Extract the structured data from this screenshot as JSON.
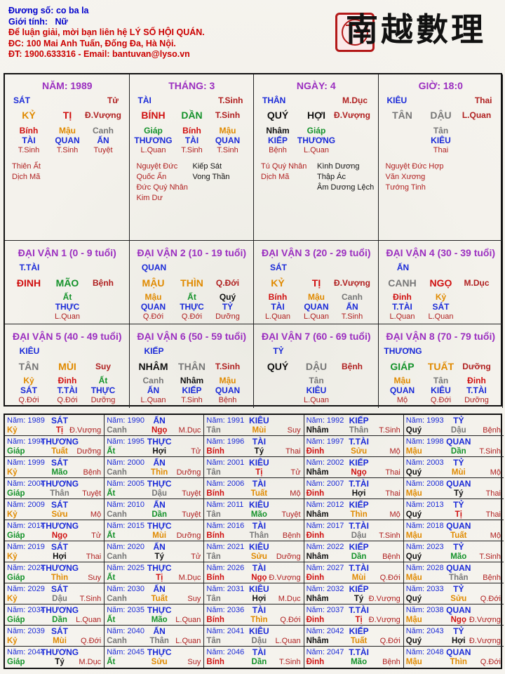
{
  "header": {
    "lines": [
      {
        "label": "Đương số:",
        "value": "co ba la"
      },
      {
        "label": "Giới tính:",
        "value": "Nữ"
      }
    ],
    "contact": [
      "Để luận giải, mời bạn liên hệ LÝ SỐ HỘI QUÁN.",
      "ĐC: 100 Mai Anh Tuấn, Đống Đa, Hà Nội.",
      "ĐT: 1900.633316 - Email: bantuvan@lyso.vn"
    ],
    "brand": "南越數理"
  },
  "pillars": [
    {
      "title": "NĂM: 1989",
      "thap_than": "SÁT",
      "stem_status": "Tử",
      "can": "KỶ",
      "chi": "TỊ",
      "life": "Đ.Vượng",
      "hidden": [
        {
          "stem": "Bính",
          "god": "TÀI",
          "phase": "T.Sinh"
        },
        {
          "stem": "Mậu",
          "god": "QUAN",
          "phase": "T.Sinh"
        },
        {
          "stem": "Canh",
          "god": "ẤN",
          "phase": "Tuyệt"
        }
      ],
      "stars_left": [
        "Thiên Ất",
        "Dịch Mã"
      ],
      "stars_right": []
    },
    {
      "title": "THÁNG: 3",
      "thap_than": "TÀI",
      "stem_status": "T.Sinh",
      "can": "BÍNH",
      "chi": "DẦN",
      "life": "T.Sinh",
      "hidden": [
        {
          "stem": "Giáp",
          "god": "THƯƠNG",
          "phase": "L.Quan"
        },
        {
          "stem": "Bính",
          "god": "TÀI",
          "phase": "T.Sinh"
        },
        {
          "stem": "Mậu",
          "god": "QUAN",
          "phase": "T.Sinh"
        }
      ],
      "stars_left": [
        "Nguyệt Đức",
        "Quốc Ấn",
        "Đức Quý Nhân",
        "Kim Dư"
      ],
      "stars_right": [
        "Kiếp Sát",
        "Vong Thần"
      ]
    },
    {
      "title": "NGÀY: 4",
      "thap_than": "THÂN",
      "stem_status": "M.Dục",
      "can": "QUÝ",
      "chi": "HỢI",
      "life": "Đ.Vượng",
      "hidden": [
        {
          "stem": "Nhâm",
          "god": "KIẾP",
          "phase": "Bệnh"
        },
        {
          "stem": "Giáp",
          "god": "THƯƠNG",
          "phase": "L.Quan"
        }
      ],
      "stars_left": [
        "Tú Quý Nhân",
        "Dịch Mã"
      ],
      "stars_right": [
        "Kình Dương",
        "Thập Ác",
        "Âm Dương Lệch"
      ]
    },
    {
      "title": "GIỜ: 18:0",
      "thap_than": "KIÊU",
      "stem_status": "Thai",
      "can": "TÂN",
      "chi": "DẬU",
      "life": "L.Quan",
      "hidden": [
        {
          "stem": "Tân",
          "god": "KIÊU",
          "phase": "Thai"
        }
      ],
      "stars_left": [
        "Nguyệt Đức Hợp",
        "Văn Xương",
        "Tướng Tinh"
      ],
      "stars_right": []
    }
  ],
  "dai_van": [
    {
      "title": "ĐẠI VẬN 1 (0 - 9 tuổi)",
      "god": "T.TÀI",
      "can": "ĐINH",
      "chi": "MÃO",
      "life": "Bệnh",
      "hidden": [
        {
          "stem": "Ất",
          "god": "THỰC",
          "phase": "L.Quan"
        }
      ]
    },
    {
      "title": "ĐẠI VẬN 2 (10 - 19 tuổi)",
      "god": "QUAN",
      "can": "MẬU",
      "chi": "THÌN",
      "life": "Q.Đới",
      "hidden": [
        {
          "stem": "Mậu",
          "god": "QUAN",
          "phase": "Q.Đới"
        },
        {
          "stem": "Ất",
          "god": "THỰC",
          "phase": "Q.Đới"
        },
        {
          "stem": "Quý",
          "god": "TỶ",
          "phase": "Dưỡng"
        }
      ]
    },
    {
      "title": "ĐẠI VẬN 3 (20 - 29 tuổi)",
      "god": "SÁT",
      "can": "KỶ",
      "chi": "TỊ",
      "life": "Đ.Vượng",
      "hidden": [
        {
          "stem": "Bính",
          "god": "TÀI",
          "phase": "L.Quan"
        },
        {
          "stem": "Mậu",
          "god": "QUAN",
          "phase": "L.Quan"
        },
        {
          "stem": "Canh",
          "god": "ẤN",
          "phase": "T.Sinh"
        }
      ]
    },
    {
      "title": "ĐẠI VẬN 4 (30 - 39 tuổi)",
      "god": "ẤN",
      "can": "CANH",
      "chi": "NGỌ",
      "life": "M.Dục",
      "hidden": [
        {
          "stem": "Đinh",
          "god": "T.TÀI",
          "phase": "L.Quan"
        },
        {
          "stem": "Kỷ",
          "god": "SÁT",
          "phase": "L.Quan"
        }
      ]
    },
    {
      "title": "ĐẠI VẬN 5 (40 - 49 tuổi)",
      "god": "KIÊU",
      "can": "TÂN",
      "chi": "MÙI",
      "life": "Suy",
      "hidden": [
        {
          "stem": "Kỷ",
          "god": "SÁT",
          "phase": "Q.Đới"
        },
        {
          "stem": "Đinh",
          "god": "T.TÀI",
          "phase": "Q.Đới"
        },
        {
          "stem": "Ất",
          "god": "THỰC",
          "phase": "Dưỡng"
        }
      ]
    },
    {
      "title": "ĐẠI VẬN 6 (50 - 59 tuổi)",
      "god": "KIẾP",
      "can": "NHÂM",
      "chi": "THÂN",
      "life": "T.Sinh",
      "hidden": [
        {
          "stem": "Canh",
          "god": "ẤN",
          "phase": "L.Quan"
        },
        {
          "stem": "Nhâm",
          "god": "KIẾP",
          "phase": "T.Sinh"
        },
        {
          "stem": "Mậu",
          "god": "QUAN",
          "phase": "Bệnh"
        }
      ]
    },
    {
      "title": "ĐẠI VẬN 7 (60 - 69 tuổi)",
      "god": "TỶ",
      "can": "QUÝ",
      "chi": "DẬU",
      "life": "Bệnh",
      "hidden": [
        {
          "stem": "Tân",
          "god": "KIÊU",
          "phase": "L.Quan"
        }
      ]
    },
    {
      "title": "ĐẠI VẬN 8 (70 - 79 tuổi)",
      "god": "THƯƠNG",
      "can": "GIÁP",
      "chi": "TUẤT",
      "life": "Dưỡng",
      "hidden": [
        {
          "stem": "Mậu",
          "god": "QUAN",
          "phase": "Mộ"
        },
        {
          "stem": "Tân",
          "god": "KIÊU",
          "phase": "Q.Đới"
        },
        {
          "stem": "Đinh",
          "god": "T.TÀI",
          "phase": "Dưỡng"
        }
      ]
    }
  ],
  "year_label": "Năm:",
  "years": [
    [
      "1989",
      "SÁT",
      "Kỷ",
      "Tị",
      "Đ.Vượng"
    ],
    [
      "1990",
      "ẤN",
      "Canh",
      "Ngọ",
      "M.Dục"
    ],
    [
      "1991",
      "KIÊU",
      "Tân",
      "Mùi",
      "Suy"
    ],
    [
      "1992",
      "KIẾP",
      "Nhâm",
      "Thân",
      "T.Sinh"
    ],
    [
      "1993",
      "TỶ",
      "Quý",
      "Dậu",
      "Bệnh"
    ],
    [
      "1994",
      "THƯƠNG",
      "Giáp",
      "Tuất",
      "Dưỡng"
    ],
    [
      "1995",
      "THỰC",
      "Ất",
      "Hợi",
      "Tử"
    ],
    [
      "1996",
      "TÀI",
      "Bính",
      "Tý",
      "Thai"
    ],
    [
      "1997",
      "T.TÀI",
      "Đinh",
      "Sửu",
      "Mộ"
    ],
    [
      "1998",
      "QUAN",
      "Mậu",
      "Dần",
      "T.Sinh"
    ],
    [
      "1999",
      "SÁT",
      "Kỷ",
      "Mão",
      "Bệnh"
    ],
    [
      "2000",
      "ẤN",
      "Canh",
      "Thìn",
      "Dưỡng"
    ],
    [
      "2001",
      "KIÊU",
      "Tân",
      "Tị",
      "Tử"
    ],
    [
      "2002",
      "KIẾP",
      "Nhâm",
      "Ngọ",
      "Thai"
    ],
    [
      "2003",
      "TỶ",
      "Quý",
      "Mùi",
      "Mộ"
    ],
    [
      "2004",
      "THƯƠNG",
      "Giáp",
      "Thân",
      "Tuyệt"
    ],
    [
      "2005",
      "THỰC",
      "Ất",
      "Dậu",
      "Tuyệt"
    ],
    [
      "2006",
      "TÀI",
      "Bính",
      "Tuất",
      "Mộ"
    ],
    [
      "2007",
      "T.TÀI",
      "Đinh",
      "Hợi",
      "Thai"
    ],
    [
      "2008",
      "QUAN",
      "Mậu",
      "Tý",
      "Thai"
    ],
    [
      "2009",
      "SÁT",
      "Kỷ",
      "Sửu",
      "Mộ"
    ],
    [
      "2010",
      "ẤN",
      "Canh",
      "Dần",
      "Tuyệt"
    ],
    [
      "2011",
      "KIÊU",
      "Tân",
      "Mão",
      "Tuyệt"
    ],
    [
      "2012",
      "KIẾP",
      "Nhâm",
      "Thìn",
      "Mộ"
    ],
    [
      "2013",
      "TỶ",
      "Quý",
      "Tị",
      "Thai"
    ],
    [
      "2014",
      "THƯƠNG",
      "Giáp",
      "Ngọ",
      "Tử"
    ],
    [
      "2015",
      "THỰC",
      "Ất",
      "Mùi",
      "Dưỡng"
    ],
    [
      "2016",
      "TÀI",
      "Bính",
      "Thân",
      "Bệnh"
    ],
    [
      "2017",
      "T.TÀI",
      "Đinh",
      "Dậu",
      "T.Sinh"
    ],
    [
      "2018",
      "QUAN",
      "Mậu",
      "Tuất",
      "Mộ"
    ],
    [
      "2019",
      "SÁT",
      "Kỷ",
      "Hợi",
      "Thai"
    ],
    [
      "2020",
      "ẤN",
      "Canh",
      "Tý",
      "Tử"
    ],
    [
      "2021",
      "KIÊU",
      "Tân",
      "Sửu",
      "Dưỡng"
    ],
    [
      "2022",
      "KIẾP",
      "Nhâm",
      "Dần",
      "Bệnh"
    ],
    [
      "2023",
      "TỶ",
      "Quý",
      "Mão",
      "T.Sinh"
    ],
    [
      "2024",
      "THƯƠNG",
      "Giáp",
      "Thìn",
      "Suy"
    ],
    [
      "2025",
      "THỰC",
      "Ất",
      "Tị",
      "M.Dục"
    ],
    [
      "2026",
      "TÀI",
      "Bính",
      "Ngọ",
      "Đ.Vượng"
    ],
    [
      "2027",
      "T.TÀI",
      "Đinh",
      "Mùi",
      "Q.Đới"
    ],
    [
      "2028",
      "QUAN",
      "Mậu",
      "Thân",
      "Bệnh"
    ],
    [
      "2029",
      "SÁT",
      "Kỷ",
      "Dậu",
      "T.Sinh"
    ],
    [
      "2030",
      "ẤN",
      "Canh",
      "Tuất",
      "Suy"
    ],
    [
      "2031",
      "KIÊU",
      "Tân",
      "Hợi",
      "M.Dục"
    ],
    [
      "2032",
      "KIẾP",
      "Nhâm",
      "Tý",
      "Đ.Vượng"
    ],
    [
      "2033",
      "TỶ",
      "Quý",
      "Sửu",
      "Q.Đới"
    ],
    [
      "2034",
      "THƯƠNG",
      "Giáp",
      "Dần",
      "L.Quan"
    ],
    [
      "2035",
      "THỰC",
      "Ất",
      "Mão",
      "L.Quan"
    ],
    [
      "2036",
      "TÀI",
      "Bính",
      "Thìn",
      "Q.Đới"
    ],
    [
      "2037",
      "T.TÀI",
      "Đinh",
      "Tị",
      "Đ.Vượng"
    ],
    [
      "2038",
      "QUAN",
      "Mậu",
      "Ngọ",
      "Đ.Vượng"
    ],
    [
      "2039",
      "SÁT",
      "Kỷ",
      "Mùi",
      "Q.Đới"
    ],
    [
      "2040",
      "ẤN",
      "Canh",
      "Thân",
      "L.Quan"
    ],
    [
      "2041",
      "KIÊU",
      "Tân",
      "Dậu",
      "L.Quan"
    ],
    [
      "2042",
      "KIẾP",
      "Nhâm",
      "Tuất",
      "Q.Đới"
    ],
    [
      "2043",
      "TỶ",
      "Quý",
      "Hợi",
      "Đ.Vượng"
    ],
    [
      "2044",
      "THƯƠNG",
      "Giáp",
      "Tý",
      "M.Dục"
    ],
    [
      "2045",
      "THỰC",
      "Ất",
      "Sửu",
      "Suy"
    ],
    [
      "2046",
      "TÀI",
      "Bính",
      "Dần",
      "T.Sinh"
    ],
    [
      "2047",
      "T.TÀI",
      "Đinh",
      "Mão",
      "Bệnh"
    ],
    [
      "2048",
      "QUAN",
      "Mậu",
      "Thìn",
      "Q.Đới"
    ]
  ],
  "colors": {
    "Giáp": "#14922a",
    "Ất": "#14922a",
    "Dần": "#14922a",
    "Mão": "#14922a",
    "Bính": "#d01010",
    "Đinh": "#d01010",
    "Tị": "#d01010",
    "Ngọ": "#d01010",
    "Mậu": "#e08a00",
    "Kỷ": "#e08a00",
    "Thìn": "#e08a00",
    "Tuất": "#e08a00",
    "Sửu": "#e08a00",
    "Mùi": "#e08a00",
    "Canh": "#777777",
    "Tân": "#777777",
    "Thân": "#777777",
    "Dậu": "#777777",
    "Nhâm": "#111111",
    "Quý": "#111111",
    "Hợi": "#111111",
    "Tý": "#111111",
    "title": "#9b2fc0",
    "label": "#1a2ad8",
    "life": "#b02020"
  }
}
